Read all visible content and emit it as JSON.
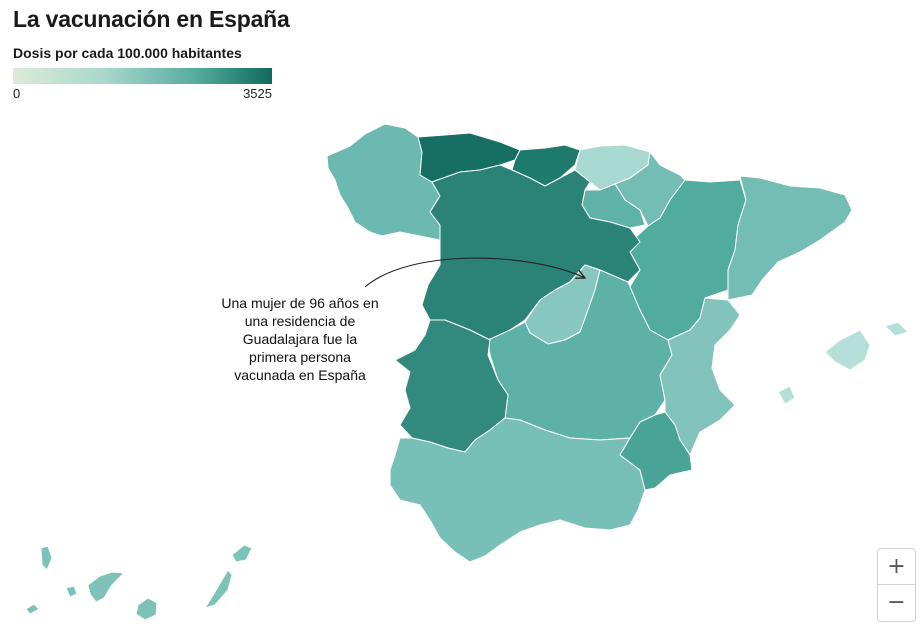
{
  "header": {
    "title": "La vacunación en España",
    "legend_title": "Dosis por cada 100.000 habitantes",
    "legend_min": "0",
    "legend_max": "3525"
  },
  "annotation": {
    "text": "Una mujer de 96 años en\nuna residencia de\nGuadalajara fue la\nprimera persona\nvacunada en España"
  },
  "colors": {
    "scale_low": "#dcebd8",
    "scale_mid": "#57ada0",
    "scale_high": "#0f6a5d",
    "region_border": "#ffffff"
  },
  "zoom": {
    "zoom_in_icon": "plus-icon",
    "zoom_out_icon": "minus-icon"
  },
  "map_regions": [
    {
      "id": "galicia",
      "fill": "#6bb9b0"
    },
    {
      "id": "asturias",
      "fill": "#156f62"
    },
    {
      "id": "cantabria",
      "fill": "#1f7a6e"
    },
    {
      "id": "pais-vasco",
      "fill": "#a8d9d1"
    },
    {
      "id": "navarra",
      "fill": "#73bdb4"
    },
    {
      "id": "la-rioja",
      "fill": "#5fb2a8"
    },
    {
      "id": "aragon",
      "fill": "#52ab9f"
    },
    {
      "id": "cataluna",
      "fill": "#73bdb4"
    },
    {
      "id": "castilla-y-leon",
      "fill": "#2b8377"
    },
    {
      "id": "madrid",
      "fill": "#88c7bf"
    },
    {
      "id": "castilla-la-mancha",
      "fill": "#5eb1a7"
    },
    {
      "id": "comunidad-valenciana",
      "fill": "#82c4bc"
    },
    {
      "id": "extremadura",
      "fill": "#328a7e"
    },
    {
      "id": "andalucia",
      "fill": "#78c0b7"
    },
    {
      "id": "murcia",
      "fill": "#49a396"
    },
    {
      "id": "baleares",
      "fill": "#b5dfd8"
    },
    {
      "id": "canarias",
      "fill": "#7cc2b9"
    }
  ]
}
